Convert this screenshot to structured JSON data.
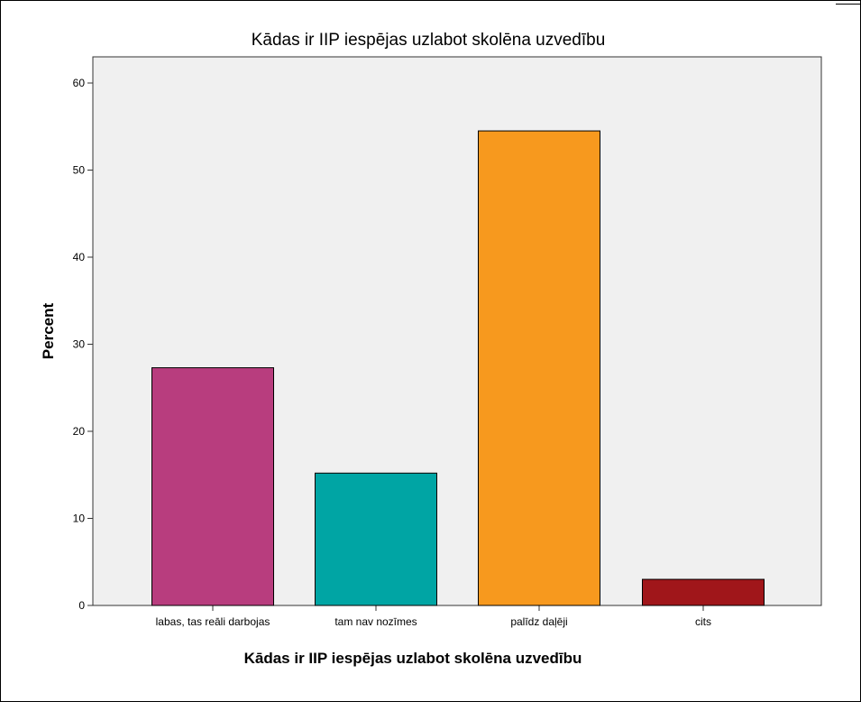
{
  "chart_data": {
    "type": "bar",
    "title": "Kādas ir IIP iespējas uzlabot skolēna uzvedību",
    "xlabel": "Kādas ir IIP iespējas uzlabot skolēna uzvedību",
    "ylabel": "Percent",
    "categories": [
      "labas, tas reāli darbojas",
      "tam nav nozīmes",
      "palīdz daļēji",
      "cits"
    ],
    "values": [
      27.3,
      15.2,
      54.5,
      3.0
    ],
    "colors": [
      "#b83d7e",
      "#00a5a4",
      "#f7991e",
      "#a0161a"
    ],
    "ylim": [
      0,
      63
    ],
    "yticks": [
      0,
      10,
      20,
      30,
      40,
      50,
      60
    ],
    "grid": false,
    "plot_background": "#f0f0f0"
  }
}
